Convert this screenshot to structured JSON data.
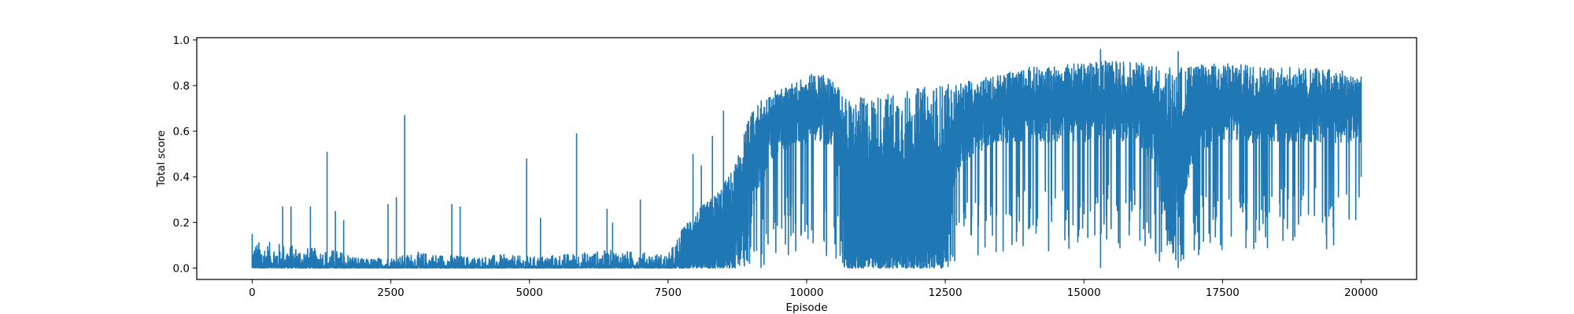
{
  "chart_data": {
    "type": "line",
    "title": "",
    "xlabel": "Episode",
    "ylabel": "Total score",
    "xlim": [
      -1000,
      21000
    ],
    "ylim": [
      -0.05,
      1.01
    ],
    "x_ticks": [
      0,
      2500,
      5000,
      7500,
      10000,
      12500,
      15000,
      17500,
      20000
    ],
    "x_tick_labels": [
      "0",
      "2500",
      "5000",
      "7500",
      "10000",
      "12500",
      "15000",
      "17500",
      "20000"
    ],
    "y_ticks": [
      0.0,
      0.2,
      0.4,
      0.6,
      0.8,
      1.0
    ],
    "y_tick_labels": [
      "0.0",
      "0.2",
      "0.4",
      "0.6",
      "0.8",
      "1.0"
    ],
    "grid": false,
    "legend": "none",
    "x_range": [
      0,
      20000
    ],
    "series": [
      {
        "name": "",
        "color": "#1f77b4",
        "envelope": {
          "x": [
            0,
            500,
            1000,
            1500,
            1800,
            2000,
            2500,
            3000,
            3500,
            4000,
            4500,
            5000,
            5500,
            6000,
            6500,
            7000,
            7500,
            7700,
            7900,
            8100,
            8300,
            8500,
            8700,
            8900,
            9100,
            9300,
            9500,
            9700,
            10000,
            10300,
            10500,
            10600,
            10700,
            10800,
            11000,
            11500,
            12000,
            12500,
            12700,
            13000,
            13500,
            14000,
            14500,
            15000,
            15500,
            16000,
            16300,
            16500,
            17000,
            17500,
            18000,
            18500,
            19000,
            19500,
            20000
          ],
          "upper": [
            0.12,
            0.11,
            0.09,
            0.08,
            0.06,
            0.04,
            0.05,
            0.07,
            0.06,
            0.05,
            0.06,
            0.05,
            0.06,
            0.07,
            0.08,
            0.07,
            0.06,
            0.15,
            0.22,
            0.27,
            0.31,
            0.37,
            0.45,
            0.63,
            0.72,
            0.76,
            0.79,
            0.8,
            0.86,
            0.85,
            0.82,
            0.78,
            0.75,
            0.74,
            0.75,
            0.77,
            0.79,
            0.81,
            0.8,
            0.83,
            0.85,
            0.88,
            0.89,
            0.9,
            0.91,
            0.9,
            0.89,
            0.88,
            0.89,
            0.9,
            0.89,
            0.88,
            0.88,
            0.87,
            0.86
          ],
          "lower": [
            0.0,
            0.0,
            0.0,
            0.0,
            0.0,
            0.0,
            0.0,
            0.0,
            0.0,
            0.0,
            0.0,
            0.0,
            0.0,
            0.0,
            0.0,
            0.0,
            0.0,
            0.0,
            0.0,
            0.0,
            0.0,
            0.0,
            0.0,
            0.0,
            0.0,
            0.0,
            0.02,
            0.05,
            0.05,
            0.05,
            0.02,
            0.01,
            0.0,
            0.0,
            0.0,
            0.0,
            0.0,
            0.0,
            0.02,
            0.05,
            0.05,
            0.08,
            0.05,
            0.08,
            0.08,
            0.06,
            0.02,
            0.0,
            0.05,
            0.08,
            0.08,
            0.08,
            0.08,
            0.08,
            0.1
          ],
          "typical_low": [
            0.0,
            0.0,
            0.0,
            0.0,
            0.0,
            0.0,
            0.0,
            0.0,
            0.0,
            0.0,
            0.0,
            0.0,
            0.0,
            0.0,
            0.0,
            0.0,
            0.0,
            0.0,
            0.0,
            0.0,
            0.0,
            0.0,
            0.0,
            0.05,
            0.3,
            0.45,
            0.5,
            0.52,
            0.55,
            0.55,
            0.5,
            0.3,
            0.0,
            0.0,
            0.0,
            0.0,
            0.0,
            0.0,
            0.4,
            0.5,
            0.55,
            0.55,
            0.55,
            0.55,
            0.56,
            0.55,
            0.4,
            0.0,
            0.5,
            0.55,
            0.55,
            0.55,
            0.55,
            0.55,
            0.55
          ]
        },
        "spikes": [
          {
            "x": 0,
            "y": 0.15
          },
          {
            "x": 550,
            "y": 0.27
          },
          {
            "x": 700,
            "y": 0.27
          },
          {
            "x": 1050,
            "y": 0.27
          },
          {
            "x": 1350,
            "y": 0.51
          },
          {
            "x": 1500,
            "y": 0.25
          },
          {
            "x": 1650,
            "y": 0.21
          },
          {
            "x": 2450,
            "y": 0.28
          },
          {
            "x": 2600,
            "y": 0.31
          },
          {
            "x": 2750,
            "y": 0.67
          },
          {
            "x": 3600,
            "y": 0.28
          },
          {
            "x": 3750,
            "y": 0.27
          },
          {
            "x": 4950,
            "y": 0.48
          },
          {
            "x": 5200,
            "y": 0.22
          },
          {
            "x": 5850,
            "y": 0.59
          },
          {
            "x": 6400,
            "y": 0.26
          },
          {
            "x": 6500,
            "y": 0.2
          },
          {
            "x": 7000,
            "y": 0.3
          },
          {
            "x": 7950,
            "y": 0.5
          },
          {
            "x": 8100,
            "y": 0.45
          },
          {
            "x": 8300,
            "y": 0.58
          },
          {
            "x": 8500,
            "y": 0.69
          },
          {
            "x": 15300,
            "y": 0.96
          },
          {
            "x": 16700,
            "y": 0.95
          }
        ],
        "final_value": 0.84
      }
    ]
  }
}
